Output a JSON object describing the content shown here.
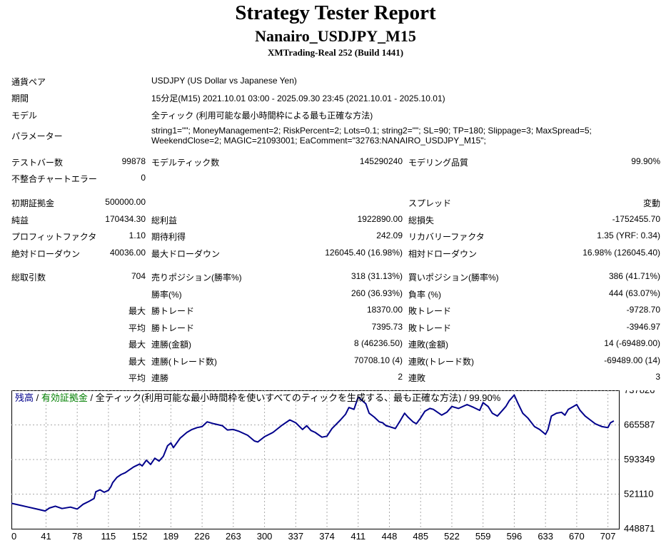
{
  "header": {
    "title": "Strategy Tester Report",
    "subtitle": "Nanairo_USDJPY_M15",
    "server": "XMTrading-Real 252 (Build 1441)"
  },
  "info": {
    "pair_label": "通貨ペア",
    "pair_value": "USDJPY (US Dollar vs Japanese Yen)",
    "period_label": "期間",
    "period_value": "15分足(M15) 2021.10.01 03:00 - 2025.09.30 23:45 (2021.10.01 - 2025.10.01)",
    "model_label": "モデル",
    "model_value": "全ティック (利用可能な最小時間枠による最も正確な方法)",
    "params_label": "パラメーター",
    "params_line1": "string1=\"\"; MoneyManagement=2; RiskPercent=2; Lots=0.1; string2=\"\"; SL=90; TP=180; Slippage=3; MaxSpread=5;",
    "params_line2": "WeekendClose=2; MAGIC=21093001; EaComment=\"32763:NANAIRO_USDJPY_M15\";"
  },
  "stats": {
    "bars_label": "テストバー数",
    "bars_value": "99878",
    "ticks_label": "モデルティック数",
    "ticks_value": "145290240",
    "quality_label": "モデリング品質",
    "quality_value": "99.90%",
    "mismatch_label": "不整合チャートエラー",
    "mismatch_value": "0",
    "deposit_label": "初期証拠金",
    "deposit_value": "500000.00",
    "spread_label": "スプレッド",
    "spread_value": "変動",
    "net_label": "純益",
    "net_value": "170434.30",
    "gross_profit_label": "総利益",
    "gross_profit_value": "1922890.00",
    "gross_loss_label": "総損失",
    "gross_loss_value": "-1752455.70",
    "pf_label": "プロフィットファクタ",
    "pf_value": "1.10",
    "expected_label": "期待利得",
    "expected_value": "242.09",
    "recovery_label": "リカバリーファクタ",
    "recovery_value": "1.35 (YRF: 0.34)",
    "abs_dd_label": "絶対ドローダウン",
    "abs_dd_value": "40036.00",
    "max_dd_label": "最大ドローダウン",
    "max_dd_value": "126045.40 (16.98%)",
    "rel_dd_label": "相対ドローダウン",
    "rel_dd_value": "16.98% (126045.40)",
    "trades_label": "総取引数",
    "trades_value": "704",
    "short_label": "売りポジション(勝率%)",
    "short_value": "318 (31.13%)",
    "long_label": "買いポジション(勝率%)",
    "long_value": "386 (41.71%)",
    "win_label": "勝率(%)",
    "win_value": "260 (36.93%)",
    "loss_label": "負率 (%)",
    "loss_value": "444 (63.07%)",
    "max_word": "最大",
    "avg_word": "平均",
    "largest_win_label": "勝トレード",
    "largest_win_value": "18370.00",
    "largest_loss_label": "敗トレード",
    "largest_loss_value": "-9728.70",
    "avg_win_label": "勝トレード",
    "avg_win_value": "7395.73",
    "avg_loss_label": "敗トレード",
    "avg_loss_value": "-3946.97",
    "max_cons_wins_label": "連勝(金額)",
    "max_cons_wins_value": "8 (46236.50)",
    "max_cons_losses_label": "連敗(金額)",
    "max_cons_losses_value": "14 (-69489.00)",
    "max_cons_profit_label": "連勝(トレード数)",
    "max_cons_profit_value": "70708.10 (4)",
    "max_cons_loss_label": "連敗(トレード数)",
    "max_cons_loss_value": "-69489.00 (14)",
    "avg_cons_wins_label": "連勝",
    "avg_cons_wins_value": "2",
    "avg_cons_losses_label": "連敗",
    "avg_cons_losses_value": "3"
  },
  "chart_data": {
    "type": "line",
    "legend": {
      "balance": "残高",
      "separator1": " / ",
      "equity": "有効証拠金",
      "separator2": " / ",
      "rest": "全ティック(利用可能な最小時間枠を使いすべてのティックを生成する、最も正確な方法) / 99.90%"
    },
    "colors": {
      "line": "#00008b",
      "balance_text": "#00008b",
      "equity_text": "#008000"
    },
    "x_ticks": [
      "0",
      "41",
      "78",
      "115",
      "152",
      "189",
      "226",
      "263",
      "300",
      "337",
      "374",
      "411",
      "448",
      "485",
      "522",
      "559",
      "596",
      "633",
      "670",
      "707"
    ],
    "y_ticks": [
      "737826",
      "665587",
      "593349",
      "521110",
      "448871"
    ],
    "ylim": [
      448871,
      737826
    ],
    "xlim": [
      0,
      720
    ],
    "grid": true,
    "series": [
      {
        "x": [
          0,
          10,
          20,
          30,
          40,
          45,
          52,
          60,
          70,
          78,
          85,
          92,
          98,
          100,
          105,
          110,
          115,
          118,
          120,
          125,
          130,
          135,
          140,
          145,
          152,
          155,
          160,
          165,
          170,
          175,
          180,
          185,
          189,
          192,
          200,
          208,
          214,
          220,
          226,
          232,
          240,
          250,
          256,
          263,
          270,
          280,
          288,
          292,
          300,
          310,
          320,
          330,
          337,
          345,
          350,
          355,
          360,
          368,
          374,
          380,
          390,
          396,
          400,
          406,
          411,
          416,
          420,
          424,
          430,
          436,
          440,
          444,
          448,
          455,
          460,
          466,
          470,
          476,
          480,
          485,
          490,
          496,
          500,
          510,
          516,
          522,
          530,
          540,
          548,
          555,
          559,
          565,
          570,
          576,
          580,
          586,
          590,
          596,
          600,
          606,
          612,
          620,
          626,
          633,
          636,
          640,
          646,
          652,
          656,
          660,
          666,
          670,
          674,
          680,
          686,
          692,
          700,
          707,
          710,
          714
        ],
        "y": [
          502000,
          498000,
          494000,
          490000,
          486000,
          492000,
          496000,
          491000,
          494000,
          490000,
          500000,
          506000,
          512000,
          526000,
          530000,
          525000,
          529000,
          537000,
          545000,
          556000,
          562000,
          566000,
          572000,
          578000,
          584000,
          580000,
          592000,
          583000,
          596000,
          590000,
          600000,
          622000,
          628000,
          618000,
          638000,
          650000,
          656000,
          660000,
          662000,
          672000,
          668000,
          664000,
          655000,
          656000,
          652000,
          644000,
          632000,
          630000,
          641000,
          650000,
          664000,
          676000,
          670000,
          656000,
          664000,
          654000,
          650000,
          640000,
          642000,
          658000,
          676000,
          688000,
          702000,
          698000,
          724000,
          716000,
          710000,
          690000,
          682000,
          672000,
          670000,
          664000,
          662000,
          658000,
          672000,
          690000,
          682000,
          672000,
          668000,
          680000,
          694000,
          700000,
          698000,
          686000,
          692000,
          704000,
          700000,
          708000,
          702000,
          696000,
          712000,
          704000,
          690000,
          684000,
          692000,
          704000,
          716000,
          728000,
          712000,
          690000,
          680000,
          662000,
          656000,
          646000,
          656000,
          684000,
          690000,
          692000,
          686000,
          698000,
          704000,
          708000,
          696000,
          684000,
          676000,
          668000,
          662000,
          660000,
          670000,
          674000
        ]
      }
    ]
  }
}
